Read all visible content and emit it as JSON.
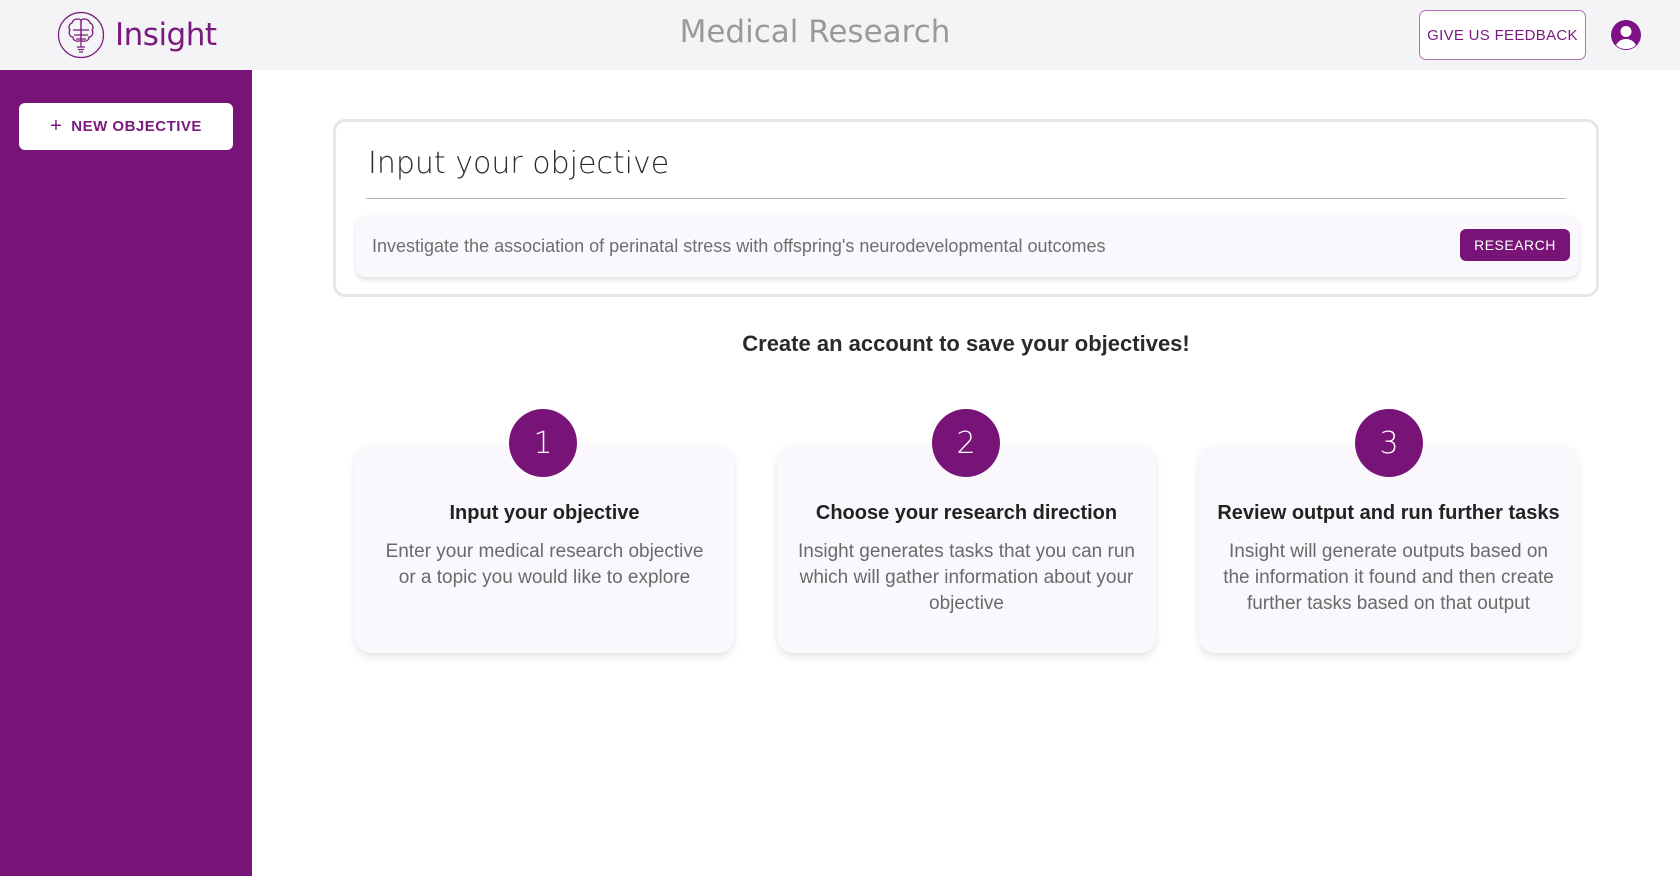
{
  "header": {
    "logo_text": "Insight",
    "title": "Medical Research",
    "feedback_label": "GIVE US FEEDBACK"
  },
  "sidebar": {
    "new_objective_label": "NEW OBJECTIVE"
  },
  "objective": {
    "title": "Input your objective",
    "placeholder": "Investigate the association of perinatal stress with offspring's neurodevelopmental outcomes",
    "value": "",
    "research_label": "RESEARCH"
  },
  "cta": "Create an account to save your objectives!",
  "steps": [
    {
      "number": "1",
      "title": "Input your objective",
      "description": "Enter your medical research objective or a topic you would like to explore"
    },
    {
      "number": "2",
      "title": "Choose your research direction",
      "description": "Insight generates tasks that you can run which will gather information about your objective"
    },
    {
      "number": "3",
      "title": "Review output and run further tasks",
      "description": "Insight will generate outputs based on the information it found and then create further tasks based on that output"
    }
  ],
  "colors": {
    "brand": "#781478",
    "header_bg": "#f4f4f6"
  }
}
